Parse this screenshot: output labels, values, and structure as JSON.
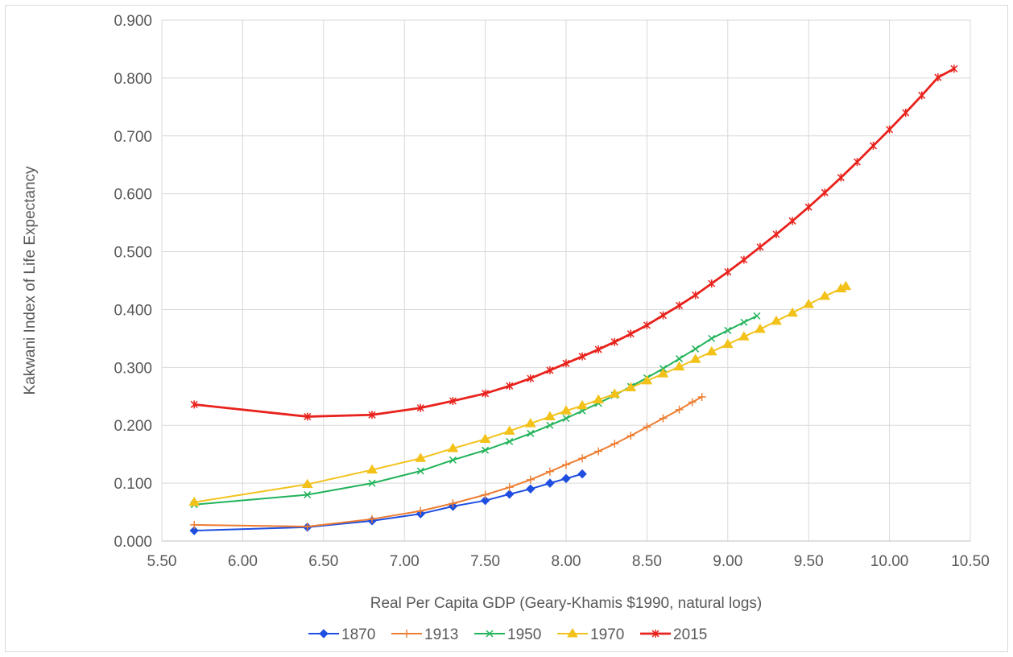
{
  "chart_data": {
    "type": "line",
    "title": "",
    "xlabel": "Real Per Capita GDP (Geary-Khamis $1990, natural logs)",
    "ylabel": "Kakwani Index of Life Expectancy",
    "xlim": [
      5.5,
      10.5
    ],
    "ylim": [
      0,
      0.9
    ],
    "x_ticks": [
      "5.50",
      "6.00",
      "6.50",
      "7.00",
      "7.50",
      "8.00",
      "8.50",
      "9.00",
      "9.50",
      "10.00",
      "10.50"
    ],
    "y_ticks": [
      "0.000",
      "0.100",
      "0.200",
      "0.300",
      "0.400",
      "0.500",
      "0.600",
      "0.700",
      "0.800",
      "0.900"
    ],
    "grid": "vertical and horizontal major gridlines",
    "legend_position": "bottom",
    "series": [
      {
        "name": "1870",
        "color": "#1f4fe0",
        "marker": "diamond",
        "x": [
          5.7,
          6.4,
          6.8,
          7.1,
          7.3,
          7.5,
          7.65,
          7.78,
          7.9,
          8.0,
          8.1
        ],
        "y": [
          0.018,
          0.024,
          0.035,
          0.047,
          0.06,
          0.07,
          0.081,
          0.09,
          0.1,
          0.108,
          0.116
        ]
      },
      {
        "name": "1913",
        "color": "#ed7d31",
        "marker": "plus",
        "x": [
          5.7,
          6.4,
          6.8,
          7.1,
          7.3,
          7.5,
          7.65,
          7.78,
          7.9,
          8.0,
          8.1,
          8.2,
          8.3,
          8.4,
          8.5,
          8.6,
          8.7,
          8.78,
          8.84
        ],
        "y": [
          0.028,
          0.025,
          0.038,
          0.052,
          0.065,
          0.08,
          0.093,
          0.106,
          0.12,
          0.132,
          0.143,
          0.155,
          0.168,
          0.182,
          0.197,
          0.212,
          0.227,
          0.24,
          0.249
        ]
      },
      {
        "name": "1950",
        "color": "#21b35a",
        "marker": "x",
        "x": [
          5.7,
          6.4,
          6.8,
          7.1,
          7.3,
          7.5,
          7.65,
          7.78,
          7.9,
          8.0,
          8.1,
          8.2,
          8.3,
          8.4,
          8.5,
          8.6,
          8.7,
          8.8,
          8.9,
          9.0,
          9.1,
          9.18
        ],
        "y": [
          0.063,
          0.08,
          0.1,
          0.121,
          0.14,
          0.157,
          0.172,
          0.186,
          0.2,
          0.212,
          0.225,
          0.238,
          0.252,
          0.267,
          0.282,
          0.298,
          0.315,
          0.332,
          0.35,
          0.364,
          0.378,
          0.389
        ]
      },
      {
        "name": "1970",
        "color": "#f2c21a",
        "marker": "triangle",
        "x": [
          5.7,
          6.4,
          6.8,
          7.1,
          7.3,
          7.5,
          7.65,
          7.78,
          7.9,
          8.0,
          8.1,
          8.2,
          8.3,
          8.4,
          8.5,
          8.6,
          8.7,
          8.8,
          8.9,
          9.0,
          9.1,
          9.2,
          9.3,
          9.4,
          9.5,
          9.6,
          9.7,
          9.73
        ],
        "y": [
          0.067,
          0.098,
          0.123,
          0.143,
          0.16,
          0.176,
          0.19,
          0.203,
          0.215,
          0.225,
          0.234,
          0.244,
          0.254,
          0.265,
          0.277,
          0.289,
          0.301,
          0.314,
          0.327,
          0.34,
          0.353,
          0.366,
          0.38,
          0.394,
          0.409,
          0.423,
          0.436,
          0.44
        ]
      },
      {
        "name": "2015",
        "color": "#e8221c",
        "marker": "star",
        "x": [
          5.7,
          6.4,
          6.8,
          7.1,
          7.3,
          7.5,
          7.65,
          7.78,
          7.9,
          8.0,
          8.1,
          8.2,
          8.3,
          8.4,
          8.5,
          8.6,
          8.7,
          8.8,
          8.9,
          9.0,
          9.1,
          9.2,
          9.3,
          9.4,
          9.5,
          9.6,
          9.7,
          9.8,
          9.9,
          10.0,
          10.1,
          10.2,
          10.3,
          10.4
        ],
        "y": [
          0.236,
          0.215,
          0.218,
          0.23,
          0.242,
          0.255,
          0.268,
          0.281,
          0.295,
          0.307,
          0.319,
          0.331,
          0.344,
          0.358,
          0.373,
          0.39,
          0.407,
          0.425,
          0.445,
          0.465,
          0.486,
          0.508,
          0.53,
          0.553,
          0.577,
          0.602,
          0.628,
          0.655,
          0.683,
          0.711,
          0.74,
          0.77,
          0.801,
          0.816
        ]
      }
    ]
  }
}
